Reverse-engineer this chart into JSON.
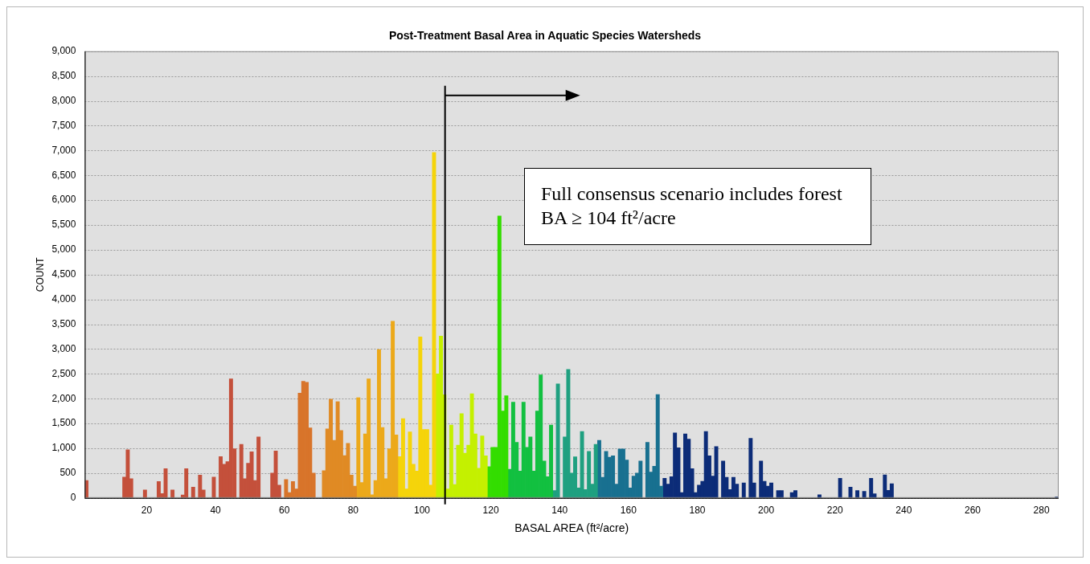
{
  "chart_data": {
    "type": "bar",
    "title": "Post-Treatment Basal Area in Aquatic Species Watersheds",
    "xlabel": "BASAL AREA (ft²/acre)",
    "ylabel": "COUNT",
    "xlim": [
      2,
      285
    ],
    "xticks": [
      20,
      40,
      60,
      80,
      100,
      120,
      140,
      160,
      180,
      200,
      220,
      240,
      260,
      280
    ],
    "ylim": [
      0,
      9000
    ],
    "yticks": [
      0,
      500,
      {
        "value": 1000,
        "label": "1,000"
      },
      {
        "value": 1500,
        "label": "1,500"
      },
      {
        "value": 2000,
        "label": "2,000"
      },
      {
        "value": 2500,
        "label": "2,500"
      },
      {
        "value": 3000,
        "label": "3,000"
      },
      {
        "value": 3500,
        "label": "3,500"
      },
      {
        "value": 4000,
        "label": "4,000"
      },
      {
        "value": 4500,
        "label": "4,500"
      },
      {
        "value": 5000,
        "label": "5,000"
      },
      {
        "value": 5500,
        "label": "5,500"
      },
      {
        "value": 6000,
        "label": "6,000"
      },
      {
        "value": 6500,
        "label": "6,500"
      },
      {
        "value": 7000,
        "label": "7,000"
      },
      {
        "value": 7500,
        "label": "7,500"
      },
      {
        "value": 8000,
        "label": "8,000"
      },
      {
        "value": 8500,
        "label": "8,500"
      },
      {
        "value": 9000,
        "label": "9,000"
      }
    ],
    "grid": "y",
    "legend": false,
    "series": [
      {
        "color": "#c4503b",
        "x": [
          2.5,
          13.5,
          14.5,
          15.5,
          19.5,
          23.5,
          24.5,
          25.5,
          27.5,
          30.5,
          31.5,
          33.5,
          35.5,
          36.5,
          39.5,
          41.5,
          42.5,
          43.5,
          44.5,
          45.5,
          47.5,
          48.5,
          49.5,
          50.5,
          51.5,
          52.5,
          56.5,
          57.5,
          58.5
        ],
        "values": [
          350,
          420,
          970,
          390,
          160,
          330,
          90,
          590,
          160,
          60,
          590,
          220,
          460,
          160,
          420,
          835,
          680,
          730,
          2400,
          990,
          1080,
          390,
          700,
          930,
          350,
          1230,
          500,
          945,
          260
        ]
      },
      {
        "color": "#d8742a",
        "x": [
          60.5,
          61.5,
          62.5,
          63.5,
          64.5,
          65.5,
          66.5,
          67.5,
          68.5
        ],
        "values": [
          370,
          110,
          330,
          180,
          2110,
          2350,
          2330,
          1410,
          500
        ]
      },
      {
        "color": "#e08a24",
        "x": [
          71.5,
          72.5,
          73.5,
          74.5,
          75.5,
          76.5,
          77.5,
          78.5,
          79.5,
          80.5
        ],
        "values": [
          550,
          1390,
          1990,
          1160,
          1940,
          1360,
          855,
          1100,
          460,
          240
        ]
      },
      {
        "color": "#eca91a",
        "x": [
          81.5,
          82.5,
          83.5,
          84.5,
          85.5,
          86.5,
          87.5,
          88.5,
          89.5,
          90.5,
          91.5,
          92.5
        ],
        "values": [
          2020,
          310,
          1290,
          2400,
          65,
          350,
          2990,
          1420,
          390,
          990,
          3560,
          1270
        ]
      },
      {
        "color": "#f5d40a",
        "x": [
          93.5,
          94.5,
          95.5,
          96.5,
          97.5,
          98.5,
          99.5,
          100.5,
          101.5,
          102.5,
          103.5
        ],
        "values": [
          835,
          1600,
          180,
          1330,
          680,
          540,
          3245,
          1380,
          1380,
          260,
          6960
        ]
      },
      {
        "color": "#c4f000",
        "x": [
          104.5,
          105.5,
          106.5,
          107.5,
          108.5,
          109.5,
          110.5,
          111.5,
          112.5,
          113.5,
          114.5,
          115.5,
          116.5,
          117.5,
          118.5
        ],
        "values": [
          2500,
          3260,
          2080,
          180,
          1470,
          270,
          1065,
          1700,
          900,
          1065,
          2100,
          1290,
          600,
          1250,
          850
        ]
      },
      {
        "color": "#33dd00",
        "x": [
          119.5,
          120.5,
          121.5,
          122.5,
          123.5,
          124.5
        ],
        "values": [
          630,
          1020,
          1020,
          5680,
          1750,
          2060
        ]
      },
      {
        "color": "#12c040",
        "x": [
          125.5,
          126.5,
          127.5,
          128.5,
          129.5,
          130.5,
          131.5,
          132.5,
          133.5,
          134.5,
          135.5,
          136.5,
          137.5
        ],
        "values": [
          580,
          1930,
          1120,
          540,
          1930,
          1020,
          1230,
          540,
          1750,
          2480,
          745,
          430,
          1470
        ]
      },
      {
        "color": "#1fa080",
        "x": [
          138.5,
          139.5,
          141.5,
          142.5,
          143.5,
          144.5,
          145.5,
          146.5,
          147.5,
          148.5,
          149.5,
          150.5
        ],
        "values": [
          150,
          2300,
          1230,
          2590,
          500,
          830,
          200,
          1340,
          170,
          940,
          280,
          1080
        ]
      },
      {
        "color": "#187090",
        "x": [
          151.5,
          152.5,
          153.5,
          154.5,
          155.5,
          156.5,
          157.5,
          158.5,
          159.5,
          160.5,
          161.5,
          162.5,
          163.5,
          165.5,
          166.5,
          167.5,
          168.5,
          169.5
        ],
        "values": [
          1160,
          415,
          940,
          820,
          850,
          280,
          985,
          985,
          765,
          200,
          440,
          500,
          745,
          1120,
          520,
          640,
          2085,
          240
        ]
      },
      {
        "color": "#0c2c78",
        "x": [
          170.5,
          171.5,
          172.5,
          173.5,
          174.5,
          175.5,
          176.5,
          177.5,
          178.5,
          179.5,
          180.5,
          181.5,
          182.5,
          183.5,
          184.5,
          185.5,
          187.5,
          188.5,
          189.5,
          190.5,
          191.5,
          193.5,
          195.5,
          196.5,
          198.5,
          199.5,
          200.5,
          201.5,
          203.5,
          204.5,
          207.5,
          208.5,
          215.5,
          221.5,
          224.5,
          226.5,
          228.5,
          230.5,
          231.5,
          234.5,
          235.5,
          236.5,
          284.5
        ],
        "values": [
          395,
          280,
          430,
          1310,
          1010,
          110,
          1290,
          1185,
          590,
          110,
          260,
          335,
          1340,
          850,
          440,
          1035,
          745,
          415,
          170,
          415,
          280,
          305,
          1200,
          305,
          745,
          335,
          240,
          305,
          150,
          150,
          110,
          150,
          65,
          395,
          220,
          150,
          135,
          395,
          85,
          465,
          155,
          285,
          20
        ]
      }
    ],
    "ref_lines": [
      {
        "axis": "x",
        "value": 106.7,
        "color": "#000000"
      }
    ],
    "annotations": [
      "Full consensus scenario includes forest BA ≥ 104 ft²/acre"
    ]
  }
}
